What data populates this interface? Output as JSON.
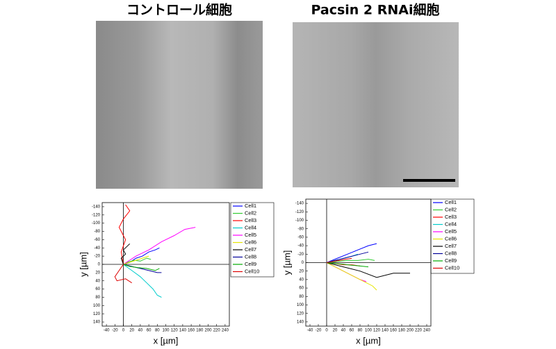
{
  "chart_data": [
    {
      "type": "line",
      "title": "コントロール細胞",
      "xlabel": "x [µm]",
      "ylabel": "y [µm]",
      "xlim": [
        -50,
        250
      ],
      "ylim": [
        -150,
        150
      ],
      "y_inverted": true,
      "xticks": [
        -40,
        -20,
        0,
        20,
        40,
        60,
        80,
        100,
        120,
        140,
        160,
        180,
        200,
        220,
        240
      ],
      "yticks": [
        -140,
        -120,
        -100,
        -80,
        -60,
        -40,
        -20,
        0,
        20,
        40,
        60,
        80,
        100,
        120,
        140
      ],
      "series": [
        {
          "name": "Cell1",
          "color": "#0000ff",
          "x": [
            0,
            15,
            30,
            45,
            60,
            75,
            85
          ],
          "y": [
            0,
            -5,
            -15,
            -20,
            -30,
            -35,
            -40
          ]
        },
        {
          "name": "Cell2",
          "color": "#33cc33",
          "x": [
            0,
            10,
            25,
            40,
            55,
            65
          ],
          "y": [
            0,
            -5,
            -10,
            -8,
            -15,
            -12
          ]
        },
        {
          "name": "Cell3",
          "color": "#ff0000",
          "x": [
            0,
            -5,
            5,
            -10,
            0,
            15,
            5
          ],
          "y": [
            0,
            -30,
            -60,
            -90,
            -110,
            -130,
            -145
          ]
        },
        {
          "name": "Cell4",
          "color": "#00cccc",
          "x": [
            0,
            20,
            40,
            55,
            70,
            80,
            90
          ],
          "y": [
            0,
            15,
            30,
            45,
            60,
            75,
            80
          ]
        },
        {
          "name": "Cell5",
          "color": "#ff00ff",
          "x": [
            0,
            30,
            60,
            90,
            120,
            145,
            170
          ],
          "y": [
            0,
            -20,
            -35,
            -55,
            -70,
            -85,
            -90
          ]
        },
        {
          "name": "Cell6",
          "color": "#e6e600",
          "x": [
            0,
            15,
            30,
            45,
            60
          ],
          "y": [
            0,
            -5,
            -10,
            -15,
            -20
          ]
        },
        {
          "name": "Cell7",
          "color": "#000000",
          "x": [
            0,
            -5,
            5,
            0,
            10,
            15
          ],
          "y": [
            0,
            -15,
            -25,
            -35,
            -45,
            -50
          ]
        },
        {
          "name": "Cell8",
          "color": "#000099",
          "x": [
            0,
            20,
            40,
            60,
            80,
            90
          ],
          "y": [
            0,
            5,
            10,
            15,
            20,
            20
          ]
        },
        {
          "name": "Cell9",
          "color": "#00aa00",
          "x": [
            0,
            15,
            35,
            55,
            75,
            85
          ],
          "y": [
            0,
            5,
            8,
            10,
            15,
            10
          ]
        },
        {
          "name": "Cell10",
          "color": "#dd0000",
          "x": [
            0,
            -10,
            -20,
            -15,
            5,
            20
          ],
          "y": [
            0,
            15,
            30,
            40,
            35,
            45
          ]
        }
      ]
    },
    {
      "type": "line",
      "title": "Pacsin 2 RNAi細胞",
      "xlabel": "x [µm]",
      "ylabel": "y [µm]",
      "xlim": [
        -50,
        250
      ],
      "ylim": [
        -150,
        150
      ],
      "y_inverted": true,
      "xticks": [
        -40,
        -20,
        0,
        20,
        40,
        60,
        80,
        100,
        120,
        140,
        160,
        180,
        200,
        220,
        240
      ],
      "yticks": [
        -140,
        -120,
        -100,
        -80,
        -60,
        -40,
        -20,
        0,
        20,
        40,
        60,
        80,
        100,
        120,
        140
      ],
      "series": [
        {
          "name": "Cell1",
          "color": "#0000ff",
          "x": [
            0,
            25,
            50,
            75,
            100,
            120
          ],
          "y": [
            0,
            -10,
            -20,
            -30,
            -40,
            -45
          ]
        },
        {
          "name": "Cell2",
          "color": "#33cc33",
          "x": [
            0,
            25,
            50,
            75,
            100,
            115
          ],
          "y": [
            0,
            -3,
            -5,
            -5,
            -8,
            -5
          ]
        },
        {
          "name": "Cell3",
          "color": "#ff0000",
          "x": [
            0,
            20,
            40,
            60,
            80
          ],
          "y": [
            0,
            2,
            5,
            5,
            8
          ]
        },
        {
          "name": "Cell4",
          "color": "#00cccc",
          "x": [
            0,
            20,
            40,
            60,
            75
          ],
          "y": [
            0,
            -5,
            -10,
            -15,
            -20
          ]
        },
        {
          "name": "Cell5",
          "color": "#ff00ff",
          "x": [
            0,
            20,
            40,
            60,
            80,
            95
          ],
          "y": [
            0,
            10,
            20,
            30,
            40,
            45
          ]
        },
        {
          "name": "Cell6",
          "color": "#e6e600",
          "x": [
            0,
            30,
            60,
            90,
            110,
            120
          ],
          "y": [
            0,
            15,
            30,
            45,
            55,
            65
          ]
        },
        {
          "name": "Cell7",
          "color": "#000000",
          "x": [
            0,
            40,
            80,
            120,
            160,
            200
          ],
          "y": [
            0,
            10,
            20,
            35,
            25,
            25
          ]
        },
        {
          "name": "Cell8",
          "color": "#000099",
          "x": [
            0,
            20,
            40,
            60,
            80,
            100
          ],
          "y": [
            0,
            -5,
            -10,
            -15,
            -20,
            -25
          ]
        },
        {
          "name": "Cell9",
          "color": "#00aa00",
          "x": [
            0,
            20,
            40,
            60,
            80,
            100
          ],
          "y": [
            0,
            2,
            4,
            6,
            8,
            10
          ]
        },
        {
          "name": "Cell10",
          "color": "#dd0000",
          "x": [
            0,
            15,
            30,
            45,
            60
          ],
          "y": [
            0,
            -3,
            -5,
            -8,
            -10
          ]
        }
      ]
    }
  ]
}
